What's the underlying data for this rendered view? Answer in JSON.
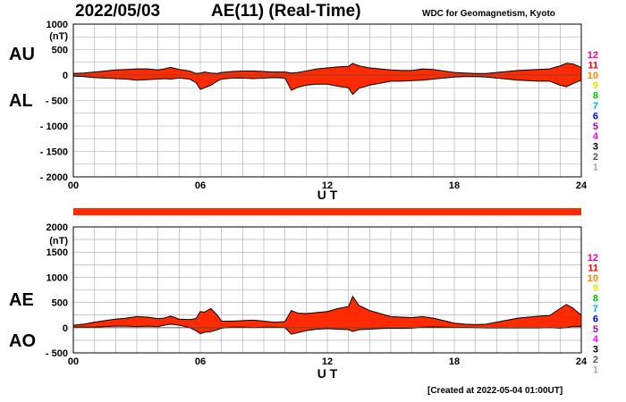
{
  "header": {
    "date": "2022/05/03",
    "title": "AE(11) (Real-Time)",
    "source": "WDC for Geomagnetism, Kyoto"
  },
  "footer": {
    "created": "[Created at 2022-05-04 01:00UT]"
  },
  "colors": {
    "fill": "#ff2a00",
    "grid": "#a8a8a8",
    "quality_bar": "#ff2a00",
    "legend": [
      "#ff0099",
      "#ff0000",
      "#ff8800",
      "#e8e800",
      "#00cc00",
      "#00aaff",
      "#0000ff",
      "#aa00cc",
      "#ff00ff",
      "#000000",
      "#555555",
      "#aaaaaa"
    ]
  },
  "legend_numbers": [
    "12",
    "11",
    "10",
    "9",
    "8",
    "7",
    "6",
    "5",
    "4",
    "3",
    "2",
    "1"
  ],
  "chart_data": [
    {
      "type": "area",
      "title": "AU / AL",
      "series_labels": [
        "AU",
        "AL"
      ],
      "unit_label": "(nT)",
      "xlabel": "U T",
      "xlim": [
        0,
        24
      ],
      "ylim": [
        -2000,
        1000
      ],
      "y_ticks": [
        1000,
        500,
        0,
        -500,
        -1000,
        -1500,
        -2000
      ],
      "y_tick_labels": [
        "1000",
        "500",
        "0",
        "- 500",
        "- 1000",
        "- 1500",
        "- 2000"
      ],
      "x_ticks": [
        0,
        6,
        12,
        18,
        24
      ],
      "x_tick_labels": [
        "00",
        "06",
        "12",
        "18",
        "24"
      ],
      "hours": [
        0,
        0.5,
        1,
        1.5,
        2,
        2.5,
        3,
        3.5,
        4,
        4.3,
        4.6,
        5,
        5.5,
        5.8,
        6,
        6.2,
        6.5,
        6.8,
        7,
        7.5,
        8,
        8.5,
        9,
        9.5,
        10,
        10.3,
        10.6,
        11,
        11.5,
        12,
        12.5,
        13,
        13.2,
        13.5,
        14,
        14.5,
        15,
        15.5,
        16,
        16.5,
        17,
        17.5,
        18,
        18.5,
        19,
        19.5,
        20,
        20.5,
        21,
        21.5,
        22,
        22.5,
        23,
        23.3,
        23.6,
        24
      ],
      "upper": [
        30,
        40,
        60,
        80,
        100,
        110,
        120,
        120,
        100,
        120,
        150,
        110,
        80,
        30,
        40,
        60,
        40,
        30,
        50,
        70,
        80,
        80,
        70,
        60,
        60,
        40,
        50,
        80,
        120,
        140,
        160,
        170,
        230,
        180,
        140,
        120,
        100,
        90,
        90,
        120,
        110,
        80,
        50,
        40,
        30,
        30,
        50,
        70,
        90,
        100,
        110,
        120,
        180,
        230,
        220,
        150
      ],
      "lower": [
        -20,
        -30,
        -50,
        -60,
        -70,
        -80,
        -100,
        -90,
        -80,
        -70,
        -80,
        -60,
        -80,
        -150,
        -280,
        -250,
        -200,
        -120,
        -80,
        -60,
        -60,
        -70,
        -60,
        -50,
        -60,
        -300,
        -240,
        -200,
        -180,
        -180,
        -220,
        -250,
        -380,
        -260,
        -200,
        -160,
        -120,
        -120,
        -110,
        -100,
        -80,
        -60,
        -40,
        -30,
        -30,
        -40,
        -60,
        -80,
        -100,
        -110,
        -120,
        -120,
        -200,
        -230,
        -170,
        -100
      ]
    },
    {
      "type": "area",
      "title": "AE / AO",
      "series_labels": [
        "AE",
        "AO"
      ],
      "unit_label": "(nT)",
      "xlabel": "U T",
      "xlim": [
        0,
        24
      ],
      "ylim": [
        -500,
        2000
      ],
      "y_ticks": [
        2000,
        1500,
        1000,
        500,
        0,
        -500
      ],
      "y_tick_labels": [
        "2000",
        "1500",
        "1000",
        "500",
        "0",
        "- 500"
      ],
      "x_ticks": [
        0,
        6,
        12,
        18,
        24
      ],
      "x_tick_labels": [
        "00",
        "06",
        "12",
        "18",
        "24"
      ],
      "hours": [
        0,
        0.5,
        1,
        1.5,
        2,
        2.5,
        3,
        3.5,
        4,
        4.3,
        4.6,
        5,
        5.5,
        5.8,
        6,
        6.2,
        6.5,
        6.8,
        7,
        7.5,
        8,
        8.5,
        9,
        9.5,
        10,
        10.3,
        10.6,
        11,
        11.5,
        12,
        12.5,
        13,
        13.2,
        13.5,
        14,
        14.5,
        15,
        15.5,
        16,
        16.5,
        17,
        17.5,
        18,
        18.5,
        19,
        19.5,
        20,
        20.5,
        21,
        21.5,
        22,
        22.5,
        23,
        23.3,
        23.6,
        24
      ],
      "upper": [
        50,
        70,
        110,
        140,
        170,
        190,
        220,
        210,
        180,
        190,
        230,
        170,
        160,
        180,
        320,
        310,
        380,
        250,
        130,
        130,
        140,
        150,
        130,
        110,
        120,
        340,
        290,
        280,
        300,
        320,
        380,
        420,
        620,
        440,
        340,
        280,
        220,
        210,
        200,
        220,
        190,
        140,
        90,
        70,
        60,
        70,
        110,
        150,
        190,
        210,
        230,
        240,
        380,
        460,
        390,
        250
      ],
      "lower": [
        10,
        10,
        10,
        20,
        30,
        30,
        20,
        30,
        20,
        50,
        70,
        50,
        0,
        -60,
        -120,
        -90,
        -80,
        -40,
        -10,
        10,
        10,
        0,
        10,
        10,
        0,
        -130,
        -100,
        -60,
        -30,
        -20,
        -30,
        -40,
        -75,
        -40,
        -30,
        -20,
        -10,
        -15,
        -10,
        10,
        15,
        10,
        5,
        5,
        0,
        -5,
        -5,
        -5,
        -5,
        -5,
        -5,
        0,
        -10,
        0,
        25,
        25
      ]
    }
  ]
}
